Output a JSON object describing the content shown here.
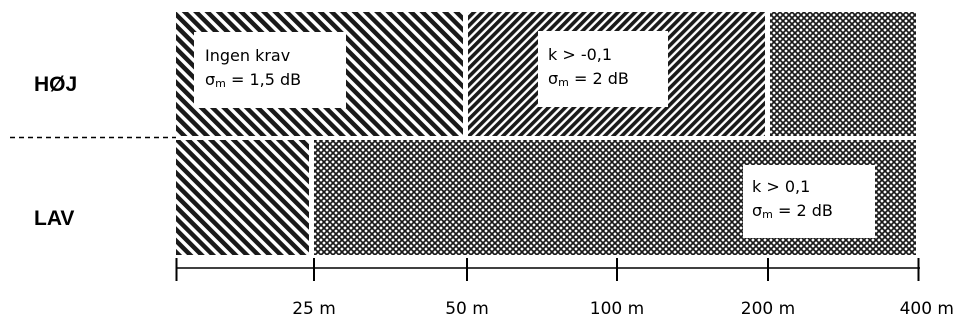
{
  "rows": [
    {
      "id": "high",
      "label": "HØJ"
    },
    {
      "id": "low",
      "label": "LAV"
    }
  ],
  "axis": {
    "ticks": [
      "25 m",
      "50 m",
      "100 m",
      "200 m",
      "400 m"
    ]
  },
  "regions": [
    {
      "id": "high-none",
      "row": "high",
      "from": "0",
      "to": "50 m",
      "pattern": "stripe-diagonal-fine"
    },
    {
      "id": "high-neg",
      "row": "high",
      "from": "50 m",
      "to": "200 m",
      "pattern": "stripe-diagonal-dense"
    },
    {
      "id": "high-pos",
      "row": "high",
      "from": "200 m",
      "to": "400 m",
      "pattern": "crosshatch"
    },
    {
      "id": "low-none",
      "row": "low",
      "from": "0",
      "to": "25 m",
      "pattern": "stripe-diagonal-fine"
    },
    {
      "id": "low-pos",
      "row": "low",
      "from": "25 m",
      "to": "400 m",
      "pattern": "crosshatch"
    }
  ],
  "boxes": {
    "no_requirement": {
      "line1": "Ingen krav",
      "sigma": "σ",
      "sub": "m",
      "value": " = 1,5 dB"
    },
    "k_negative": {
      "line1": "k > -0,1",
      "sigma": "σ",
      "sub": "m",
      "value": " = 2 dB"
    },
    "k_positive": {
      "line1": "k > 0,1",
      "sigma": "σ",
      "sub": "m",
      "value": " = 2 dB"
    }
  },
  "colors": {
    "pattern_dark": "#1a1a1a",
    "pattern_light": "#ffffff",
    "text": "#000000"
  }
}
